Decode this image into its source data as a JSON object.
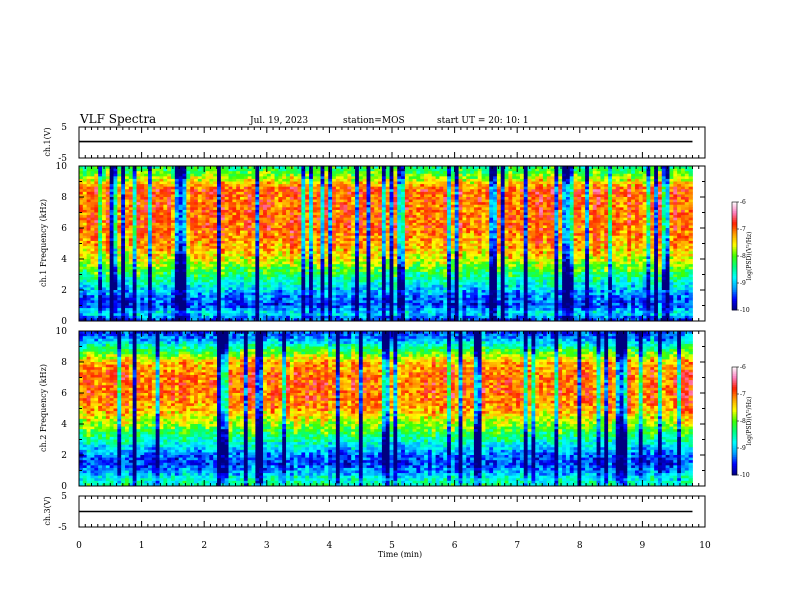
{
  "header": {
    "title": "VLF Spectra",
    "date": "Jul. 19, 2023",
    "station": "station=MOS",
    "start": "start UT =  20: 10: 1"
  },
  "colors": {
    "scale": [
      "#000080",
      "#0000ff",
      "#00a0ff",
      "#00ffff",
      "#00ff80",
      "#40ff00",
      "#ffff00",
      "#ffa000",
      "#ff2000",
      "#ff80c0",
      "#ffffff"
    ]
  },
  "chart_data": [
    {
      "type": "line",
      "panel": "ch1-voltage",
      "ylabel": "ch.1(V)",
      "ylim": [
        -5,
        5
      ],
      "y_ticklabels": [
        "5",
        "-5"
      ],
      "series": [
        {
          "x": [
            0,
            9.8
          ],
          "y": [
            0.3,
            0.3
          ]
        }
      ]
    },
    {
      "type": "heatmap",
      "panel": "ch1-spectrogram",
      "ylabel": "ch.1 Frequency (kHz)",
      "xlim": [
        0,
        10
      ],
      "ylim": [
        0,
        10
      ],
      "y_ticklabels": [
        "0",
        "2",
        "4",
        "6",
        "8",
        "10"
      ],
      "freq_profile_kHz": [
        0,
        0.5,
        1,
        1.5,
        2,
        3,
        4,
        5,
        6,
        7,
        8,
        8.5,
        9,
        9.5,
        10
      ],
      "log_psd_profile": [
        -9.6,
        -8.8,
        -9.5,
        -9.3,
        -9.0,
        -8.3,
        -7.6,
        -7.2,
        -7.0,
        -7.0,
        -7.0,
        -6.9,
        -7.5,
        -8.0,
        -8.4
      ],
      "colorbar": {
        "label": "log(PSD)(V²/Hz)",
        "range": [
          -10,
          -6
        ],
        "ticklabels": [
          "-6",
          "-7",
          "-8",
          "-9",
          "-10"
        ]
      }
    },
    {
      "type": "heatmap",
      "panel": "ch2-spectrogram",
      "ylabel": "ch.2 Frequency (kHz)",
      "xlim": [
        0,
        10
      ],
      "ylim": [
        0,
        10
      ],
      "y_ticklabels": [
        "0",
        "2",
        "4",
        "6",
        "8",
        "10"
      ],
      "freq_profile_kHz": [
        0,
        0.5,
        1,
        1.5,
        2,
        3,
        4,
        5,
        6,
        7,
        8,
        9,
        9.5,
        10
      ],
      "log_psd_profile": [
        -8.5,
        -8.7,
        -9.2,
        -9.5,
        -9.3,
        -8.5,
        -7.8,
        -7.2,
        -7.0,
        -7.0,
        -7.3,
        -8.5,
        -9.2,
        -9.5
      ],
      "colorbar": {
        "label": "log(PSD)(V²/Hz)",
        "range": [
          -10,
          -6
        ],
        "ticklabels": [
          "-6",
          "-7",
          "-8",
          "-9",
          "-10"
        ]
      }
    },
    {
      "type": "line",
      "panel": "ch3-voltage",
      "ylabel": "ch.3(V)",
      "ylim": [
        -5,
        5
      ],
      "y_ticklabels": [
        "5",
        "-5"
      ],
      "series": [
        {
          "x": [
            0,
            9.8
          ],
          "y": [
            0,
            0
          ]
        }
      ]
    }
  ],
  "xaxis": {
    "label": "Time (min)",
    "xlim": [
      0,
      10
    ],
    "ticklabels": [
      "0",
      "1",
      "2",
      "3",
      "4",
      "5",
      "6",
      "7",
      "8",
      "9",
      "10"
    ]
  }
}
